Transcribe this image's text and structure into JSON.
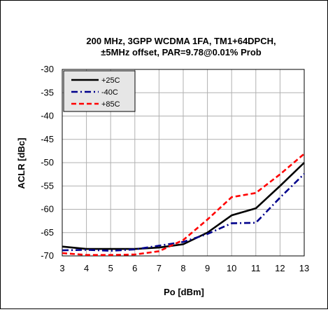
{
  "chart_data": {
    "type": "line",
    "title_lines": [
      "200 MHz, 3GPP WCDMA 1FA, TM1+64DPCH,",
      "±5MHz offset, PAR=9.78@0.01% Prob"
    ],
    "xlabel": "Po [dBm]",
    "ylabel": "ACLR [dBc]",
    "xlim": [
      3,
      13
    ],
    "ylim": [
      -70,
      -30
    ],
    "x_ticks": [
      "3",
      "4",
      "5",
      "6",
      "7",
      "8",
      "9",
      "10",
      "11",
      "12",
      "13"
    ],
    "y_ticks": [
      "-30",
      "-35",
      "-40",
      "-45",
      "-50",
      "-55",
      "-60",
      "-65",
      "-70"
    ],
    "grid": true,
    "legend_position": "top-left",
    "x": [
      3,
      4,
      5,
      6,
      7,
      8,
      9,
      10,
      11,
      12,
      13
    ],
    "series": [
      {
        "name": "+25C",
        "color": "#000000",
        "dash": "solid",
        "values": [
          -68.0,
          -68.5,
          -68.5,
          -68.5,
          -68.2,
          -67.5,
          -65.0,
          -61.3,
          -59.8,
          -55.0,
          -50.0
        ]
      },
      {
        "name": "-40C",
        "color": "#00008B",
        "dash": "dash-dot",
        "values": [
          -68.8,
          -68.7,
          -68.9,
          -68.6,
          -67.8,
          -67.0,
          -65.3,
          -63.0,
          -62.9,
          -57.5,
          -52.4
        ]
      },
      {
        "name": "+85C",
        "color": "#FF0000",
        "dash": "dashed",
        "values": [
          -69.4,
          -69.8,
          -69.8,
          -69.7,
          -69.0,
          -66.6,
          -62.2,
          -57.4,
          -56.5,
          -52.5,
          -48.1
        ]
      }
    ]
  }
}
